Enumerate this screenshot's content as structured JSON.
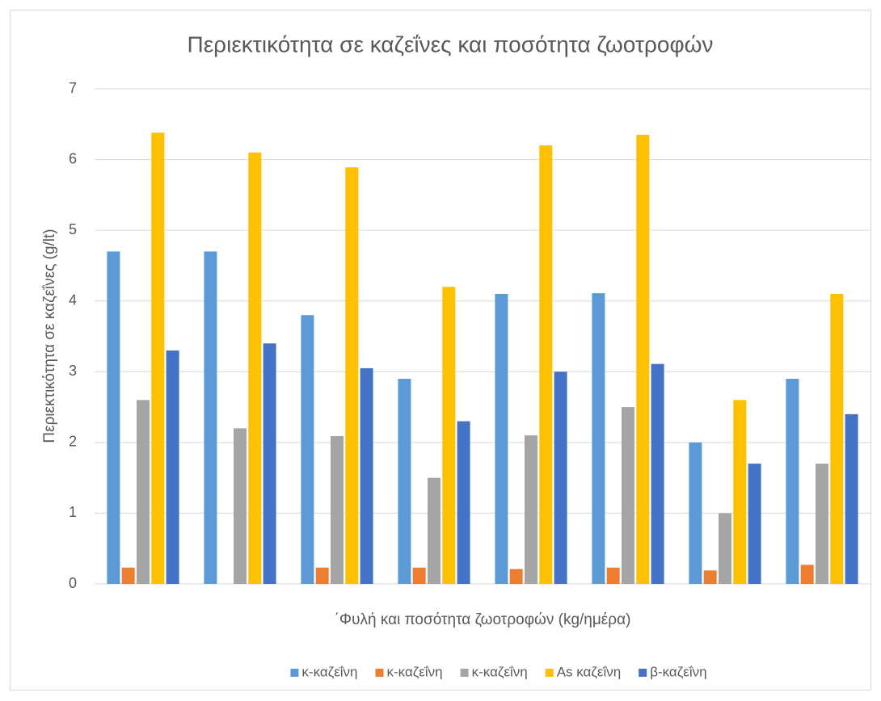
{
  "chart_data": {
    "type": "bar",
    "title": "Περιεκτικότητα σε καζεΐνες και ποσότητα ζωοτροφών",
    "x_label": "΄Φυλή και ποσότητα ζωοτροφών (kg/ημέρα)",
    "y_label": "Περιεκτικότητα σε καζεΐνες (g/lt)",
    "categories": [
      null,
      null,
      null,
      null,
      null,
      null,
      null,
      null
    ],
    "series": [
      {
        "name": "κ-καζεΐνη",
        "color": "#5b9bd5",
        "values": [
          4.7,
          4.7,
          3.8,
          2.9,
          4.1,
          4.11,
          2.0,
          2.9
        ]
      },
      {
        "name": "κ-καζεΐνη",
        "color": "#ed7d31",
        "values": [
          0.23,
          null,
          0.23,
          0.23,
          0.21,
          0.23,
          0.19,
          0.27
        ]
      },
      {
        "name": "κ-καζεΐνη",
        "color": "#a5a5a5",
        "values": [
          2.6,
          2.2,
          2.09,
          1.5,
          2.1,
          2.5,
          1.0,
          1.7
        ]
      },
      {
        "name": "Αs καζεΐνη",
        "color": "#ffc000",
        "values": [
          6.38,
          6.1,
          5.89,
          4.2,
          6.2,
          6.35,
          2.6,
          4.1
        ]
      },
      {
        "name": "β-καζεΐνη",
        "color": "#4472c4",
        "values": [
          3.3,
          3.4,
          3.05,
          2.3,
          3.0,
          3.11,
          1.7,
          2.4
        ]
      }
    ],
    "ylim": [
      0,
      7
    ],
    "yticks": [
      0,
      1,
      2,
      3,
      4,
      5,
      6,
      7
    ],
    "grid": true,
    "legend": "bottom"
  }
}
